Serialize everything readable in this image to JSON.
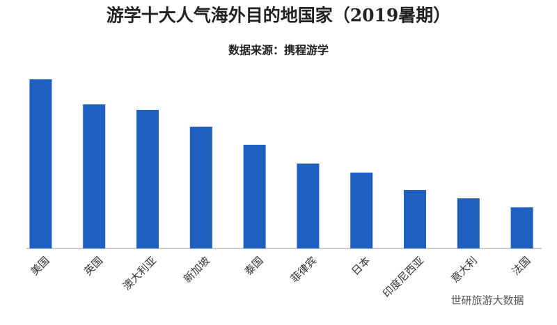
{
  "chart_data": {
    "type": "bar",
    "title": "游学十大人气海外目的地国家（2019暑期）",
    "subtitle": "数据来源：携程游学",
    "categories": [
      "美国",
      "英国",
      "澳大利亚",
      "新加坡",
      "泰国",
      "菲律宾",
      "日本",
      "印度尼西亚",
      "意大利",
      "法国"
    ],
    "values": [
      243,
      207,
      199,
      175,
      149,
      122,
      109,
      84,
      72,
      59
    ],
    "color": "#1f5fbf",
    "ylim": [
      0,
      250
    ],
    "watermark": "世研旅游大数据"
  }
}
